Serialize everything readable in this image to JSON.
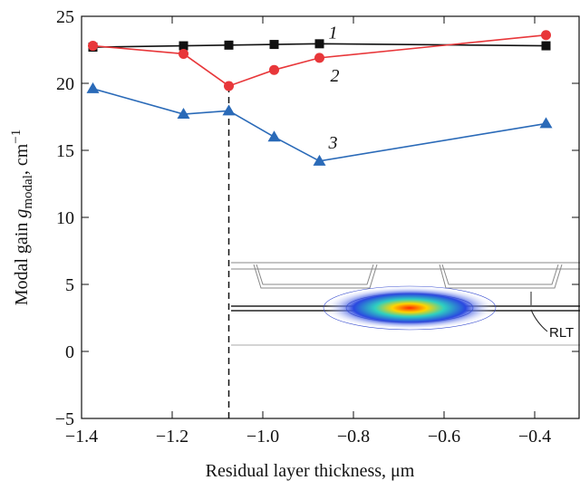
{
  "chart_data": {
    "type": "line",
    "x_label": "Residual layer thickness, μm",
    "y_label": {
      "text": "Modal gain ",
      "symbol": "g",
      "sub": "modal",
      "unit": ", cm",
      "sup": "−1"
    },
    "x": [
      -1.375,
      -1.175,
      -1.075,
      -0.975,
      -0.875,
      -0.375
    ],
    "series": [
      {
        "name": "1",
        "color": "#111111",
        "marker": "square",
        "values": [
          22.7,
          22.8,
          22.85,
          22.9,
          22.95,
          22.8
        ]
      },
      {
        "name": "2",
        "color": "#e8373a",
        "marker": "circle",
        "values": [
          22.8,
          22.2,
          19.8,
          21.0,
          21.9,
          23.6
        ]
      },
      {
        "name": "3",
        "color": "#2a6ab8",
        "marker": "triangle",
        "values": [
          19.6,
          17.7,
          17.95,
          16.0,
          14.2,
          17.0
        ]
      }
    ],
    "vline": -1.075,
    "inset_label": "RLT",
    "xlim": [
      -1.4,
      -0.3
    ],
    "ylim": [
      -5,
      25
    ],
    "xticks": [
      {
        "value": -1.4,
        "label": "−1.4"
      },
      {
        "value": -1.2,
        "label": "−1.2"
      },
      {
        "value": -1.0,
        "label": "−1.0"
      },
      {
        "value": -0.8,
        "label": "−0.8"
      },
      {
        "value": -0.6,
        "label": "−0.6"
      },
      {
        "value": -0.4,
        "label": "−0.4"
      }
    ],
    "yticks": [
      {
        "value": -5,
        "label": "−5"
      },
      0,
      5,
      10,
      15,
      20,
      25
    ]
  }
}
